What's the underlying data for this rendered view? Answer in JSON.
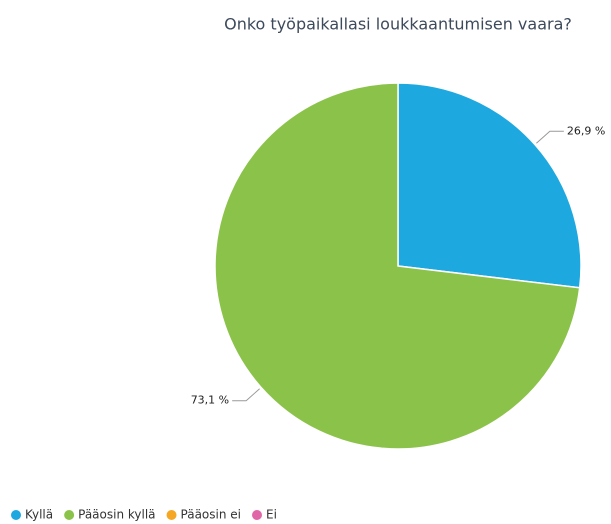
{
  "chart_data": {
    "type": "pie",
    "title": "Onko työpaikallasi loukkaantumisen vaara?",
    "categories": [
      "Kyllä",
      "Pääosin kyllä",
      "Pääosin ei",
      "Ei"
    ],
    "values": [
      26.9,
      73.1,
      0,
      0
    ],
    "value_labels": [
      "26,9 %",
      "73,1 %",
      null,
      null
    ],
    "colors": [
      "#1ea8e0",
      "#8bc34a",
      "#f5a623",
      "#e066a8"
    ],
    "legend": "bottom"
  }
}
